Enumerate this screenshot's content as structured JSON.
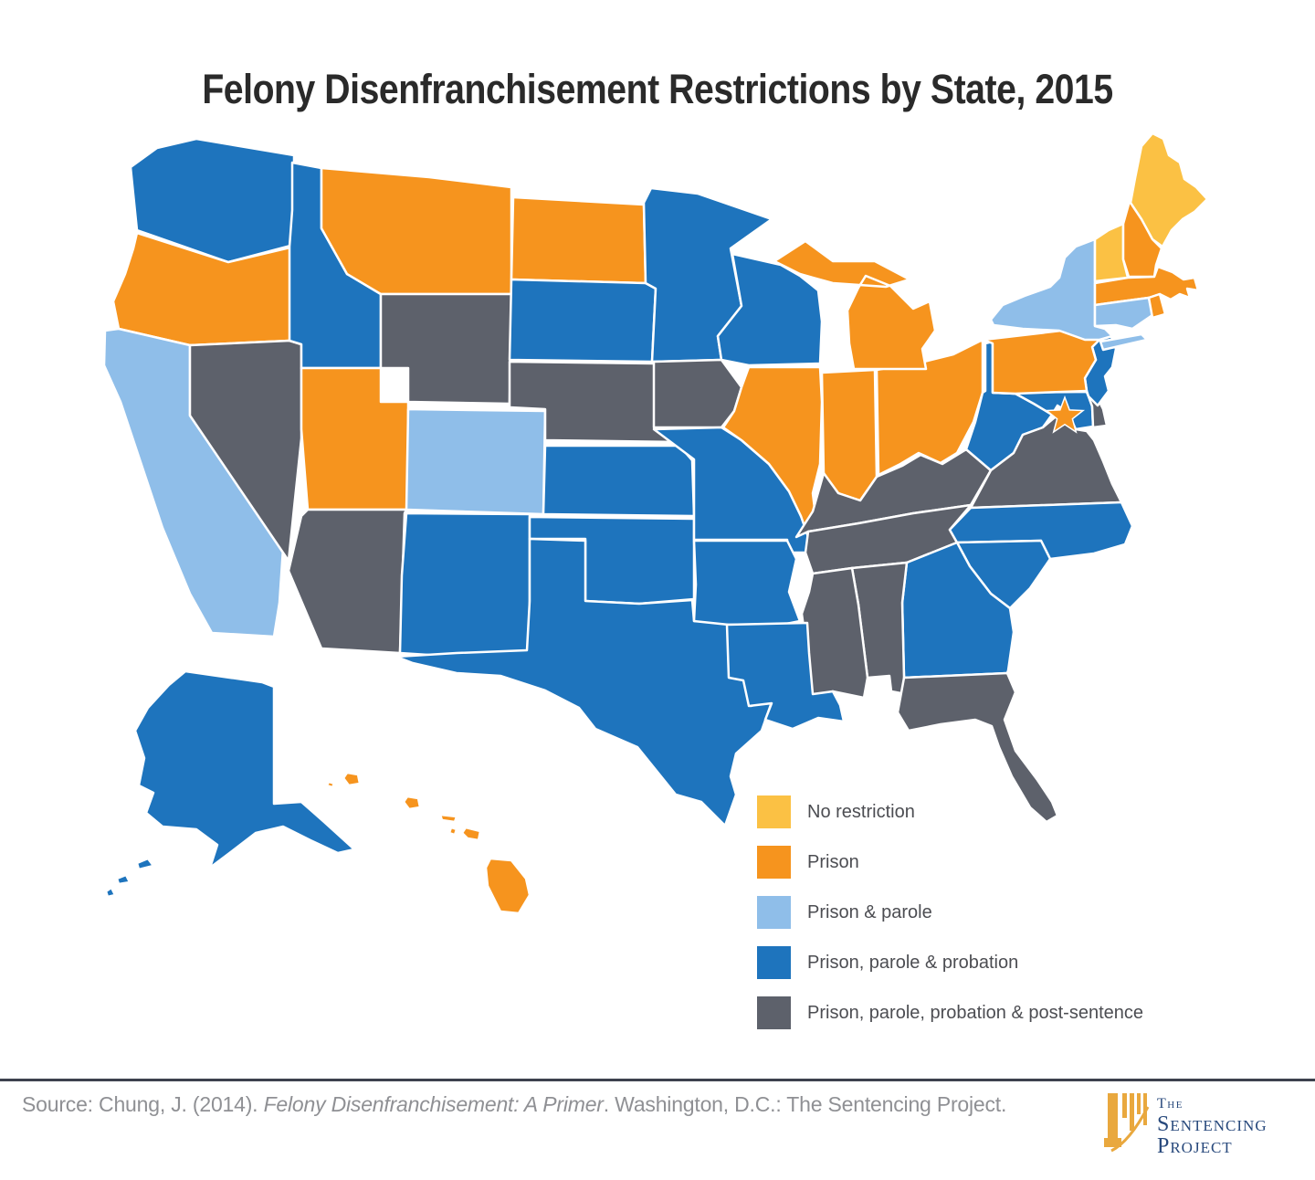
{
  "title": "Felony Disenfranchisement Restrictions by State, 2015",
  "categories": {
    "no_restriction": {
      "label": "No restriction",
      "color": "#FBC144"
    },
    "prison": {
      "label": "Prison",
      "color": "#F6941E"
    },
    "prison_parole": {
      "label": "Prison & parole",
      "color": "#8FBEE9"
    },
    "prison_parole_probation": {
      "label": "Prison, parole & probation",
      "color": "#1E74BD"
    },
    "post_sentence": {
      "label": "Prison, parole, probation & post-sentence",
      "color": "#5D616B"
    }
  },
  "legend_order": [
    "no_restriction",
    "prison",
    "prison_parole",
    "prison_parole_probation",
    "post_sentence"
  ],
  "map": {
    "border_color": "#ffffff",
    "star_marker": {
      "symbol": "star",
      "category": "prison",
      "near_state": "MD"
    },
    "states": [
      {
        "id": "WA",
        "name": "Washington",
        "category": "prison_parole_probation"
      },
      {
        "id": "OR",
        "name": "Oregon",
        "category": "prison"
      },
      {
        "id": "CA",
        "name": "California",
        "category": "prison_parole"
      },
      {
        "id": "NV",
        "name": "Nevada",
        "category": "post_sentence"
      },
      {
        "id": "ID",
        "name": "Idaho",
        "category": "prison_parole_probation"
      },
      {
        "id": "MT",
        "name": "Montana",
        "category": "prison"
      },
      {
        "id": "WY",
        "name": "Wyoming",
        "category": "post_sentence"
      },
      {
        "id": "UT",
        "name": "Utah",
        "category": "prison"
      },
      {
        "id": "CO",
        "name": "Colorado",
        "category": "prison_parole"
      },
      {
        "id": "AZ",
        "name": "Arizona",
        "category": "post_sentence"
      },
      {
        "id": "NM",
        "name": "New Mexico",
        "category": "prison_parole_probation"
      },
      {
        "id": "ND",
        "name": "North Dakota",
        "category": "prison"
      },
      {
        "id": "SD",
        "name": "South Dakota",
        "category": "prison_parole_probation"
      },
      {
        "id": "NE",
        "name": "Nebraska",
        "category": "post_sentence"
      },
      {
        "id": "KS",
        "name": "Kansas",
        "category": "prison_parole_probation"
      },
      {
        "id": "OK",
        "name": "Oklahoma",
        "category": "prison_parole_probation"
      },
      {
        "id": "TX",
        "name": "Texas",
        "category": "prison_parole_probation"
      },
      {
        "id": "MN",
        "name": "Minnesota",
        "category": "prison_parole_probation"
      },
      {
        "id": "IA",
        "name": "Iowa",
        "category": "post_sentence"
      },
      {
        "id": "MO",
        "name": "Missouri",
        "category": "prison_parole_probation"
      },
      {
        "id": "WI",
        "name": "Wisconsin",
        "category": "prison_parole_probation"
      },
      {
        "id": "IL",
        "name": "Illinois",
        "category": "prison"
      },
      {
        "id": "IN",
        "name": "Indiana",
        "category": "prison"
      },
      {
        "id": "OH",
        "name": "Ohio",
        "category": "prison"
      },
      {
        "id": "MI",
        "name": "Michigan",
        "category": "prison"
      },
      {
        "id": "KY",
        "name": "Kentucky",
        "category": "post_sentence"
      },
      {
        "id": "TN",
        "name": "Tennessee",
        "category": "post_sentence"
      },
      {
        "id": "WV",
        "name": "West Virginia",
        "category": "prison_parole_probation"
      },
      {
        "id": "VA",
        "name": "Virginia",
        "category": "post_sentence"
      },
      {
        "id": "MD",
        "name": "Maryland",
        "category": "prison_parole_probation"
      },
      {
        "id": "DE",
        "name": "Delaware",
        "category": "post_sentence"
      },
      {
        "id": "NJ",
        "name": "New Jersey",
        "category": "prison_parole_probation"
      },
      {
        "id": "PA",
        "name": "Pennsylvania",
        "category": "prison"
      },
      {
        "id": "NY",
        "name": "New York",
        "category": "prison_parole"
      },
      {
        "id": "VT",
        "name": "Vermont",
        "category": "no_restriction"
      },
      {
        "id": "NH",
        "name": "New Hampshire",
        "category": "prison"
      },
      {
        "id": "ME",
        "name": "Maine",
        "category": "no_restriction"
      },
      {
        "id": "MA",
        "name": "Massachusetts",
        "category": "prison"
      },
      {
        "id": "CT",
        "name": "Connecticut",
        "category": "prison_parole"
      },
      {
        "id": "RI",
        "name": "Rhode Island",
        "category": "prison"
      },
      {
        "id": "NC",
        "name": "North Carolina",
        "category": "prison_parole_probation"
      },
      {
        "id": "SC",
        "name": "South Carolina",
        "category": "prison_parole_probation"
      },
      {
        "id": "GA",
        "name": "Georgia",
        "category": "prison_parole_probation"
      },
      {
        "id": "AL",
        "name": "Alabama",
        "category": "post_sentence"
      },
      {
        "id": "MS",
        "name": "Mississippi",
        "category": "post_sentence"
      },
      {
        "id": "AR",
        "name": "Arkansas",
        "category": "prison_parole_probation"
      },
      {
        "id": "LA",
        "name": "Louisiana",
        "category": "prison_parole_probation"
      },
      {
        "id": "FL",
        "name": "Florida",
        "category": "post_sentence"
      },
      {
        "id": "AK",
        "name": "Alaska",
        "category": "prison_parole_probation"
      },
      {
        "id": "HI",
        "name": "Hawaii",
        "category": "prison"
      }
    ]
  },
  "footer": {
    "source_prefix": "Source: Chung, J. (2014). ",
    "source_italic": "Felony Disenfranchisement: A Primer",
    "source_suffix": ". Washington, D.C.: The Sentencing Project.",
    "logo": {
      "line1": "The",
      "line2": "Sentencing",
      "line3": "Project",
      "navy": "#28497c",
      "gold": "#e9a83e"
    }
  }
}
